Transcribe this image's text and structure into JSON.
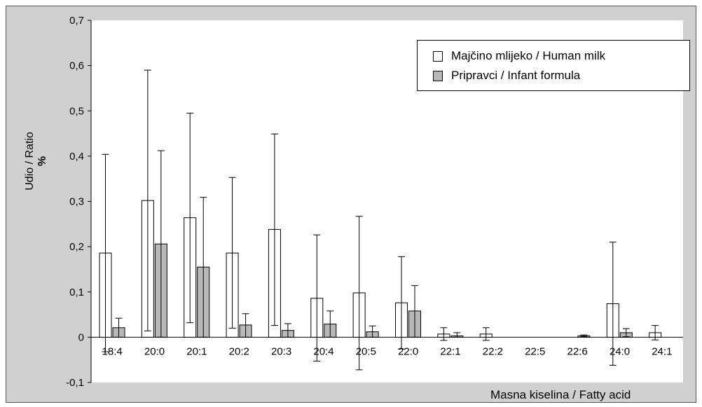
{
  "chart_data": {
    "type": "bar",
    "ylabel": "Udio / Ratio",
    "ylabel_unit": "%",
    "xlabel": "Masna kiselina / Fatty acid",
    "ylim": [
      -0.1,
      0.7
    ],
    "yticks": [
      "0,7",
      "0,6",
      "0,5",
      "0,4",
      "0,3",
      "0,2",
      "0,1",
      "0",
      "-0,1"
    ],
    "ytick_values": [
      0.7,
      0.6,
      0.5,
      0.4,
      0.3,
      0.2,
      0.1,
      0,
      -0.1
    ],
    "grid": false,
    "legend_position": "top-right",
    "categories": [
      "18:4",
      "20:0",
      "20:1",
      "20:2",
      "20:3",
      "20:4",
      "20:5",
      "22:0",
      "22:1",
      "22:2",
      "22:5",
      "22:6",
      "24:0",
      "24:1"
    ],
    "series": [
      {
        "name": "Majčino mlijeko / Human milk",
        "color": "#ffffff",
        "values": [
          0.186,
          0.302,
          0.264,
          0.186,
          0.238,
          0.086,
          0.098,
          0.076,
          0.007,
          0.007,
          0,
          0,
          0.074,
          0.01
        ],
        "error_upper": [
          0.404,
          0.59,
          0.495,
          0.353,
          0.449,
          0.226,
          0.267,
          0.178,
          0.021,
          0.021,
          0,
          0,
          0.21,
          0.026
        ],
        "error_lower": [
          -0.032,
          0.014,
          0.032,
          0.02,
          0.026,
          -0.053,
          -0.072,
          -0.026,
          -0.007,
          -0.007,
          0,
          0,
          -0.062,
          -0.006
        ]
      },
      {
        "name": "Pripravci / Infant formula",
        "color": "#b8b8b8",
        "values": [
          0.021,
          0.206,
          0.155,
          0.027,
          0.015,
          0.029,
          0.012,
          0.058,
          0.003,
          0,
          0,
          0.003,
          0.01,
          0
        ],
        "error_upper": [
          0.042,
          0.412,
          0.309,
          0.052,
          0.03,
          0.058,
          0.025,
          0.114,
          0.01,
          0,
          0,
          0.005,
          0.019,
          0
        ],
        "error_lower": [
          0,
          0,
          0,
          0,
          0,
          0,
          0,
          0,
          0,
          0,
          0,
          0.001,
          0.001,
          0
        ]
      }
    ]
  }
}
